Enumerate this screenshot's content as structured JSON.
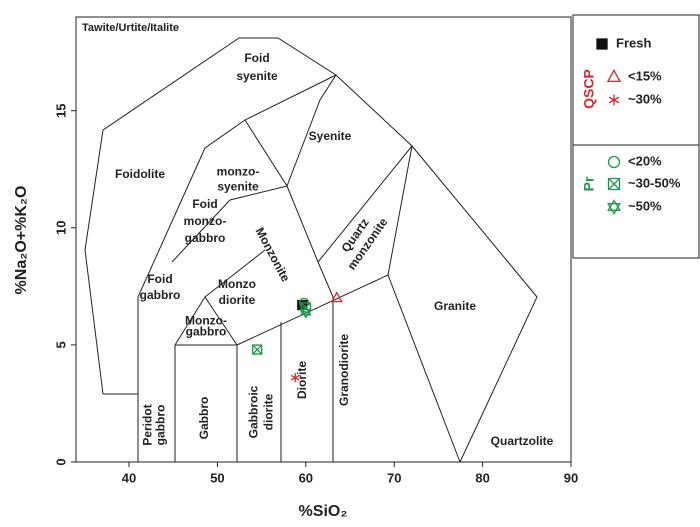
{
  "chart_data": {
    "type": "scatter",
    "x_label": "%SiO₂",
    "y_label": "%Na₂O+%K₂O",
    "xlim": [
      34,
      90
    ],
    "ylim": [
      0,
      19
    ],
    "xticks": [
      40,
      50,
      60,
      70,
      80,
      90
    ],
    "yticks": [
      0,
      5,
      10,
      15
    ],
    "annotation": "Tawite/Urtite/Italite",
    "fields": [
      [
        "Foidolite"
      ],
      [
        "Foid",
        "syenite"
      ],
      [
        "Syenite"
      ],
      [
        "monzo-",
        "syenite"
      ],
      [
        "Foid",
        "monzo-",
        "gabbro"
      ],
      [
        "Foid",
        "gabbro"
      ],
      [
        "Monzo",
        "diorite"
      ],
      [
        "Monzo-",
        "gabbro"
      ],
      [
        "Monzonite"
      ],
      [
        "Quartz",
        "monzonite"
      ],
      [
        "Granite"
      ],
      [
        "Peridot",
        "gabbro"
      ],
      [
        "Gabbro"
      ],
      [
        "Gabbroic",
        "diorite"
      ],
      [
        "Diorite"
      ],
      [
        "Granodiorite"
      ],
      [
        "Quartzolite"
      ]
    ],
    "legend_groups": [
      {
        "name": "QSCP",
        "color": "#d9262b"
      },
      {
        "name": "Pr",
        "color": "#1a9a4a"
      }
    ],
    "series": [
      {
        "name": "Fresh",
        "color": "#111111",
        "marker": "square",
        "x": [
          59.6
        ],
        "y": [
          6.7
        ]
      },
      {
        "name": "<15%",
        "color": "#d9262b",
        "marker": "triangle",
        "group": 0,
        "x": [
          63.5
        ],
        "y": [
          7.0
        ]
      },
      {
        "name": "~30%",
        "color": "#d9262b",
        "marker": "asterisk",
        "group": 0,
        "x": [
          58.8
        ],
        "y": [
          3.6
        ]
      },
      {
        "name": "<20%",
        "color": "#1a9a4a",
        "marker": "circle",
        "group": 1,
        "x": [
          59.8
        ],
        "y": [
          6.8
        ]
      },
      {
        "name": "~30-50%",
        "color": "#1a9a4a",
        "marker": "square-x",
        "group": 1,
        "x": [
          54.5,
          60.0
        ],
        "y": [
          4.8,
          6.6
        ]
      },
      {
        "name": "~50%",
        "color": "#1a9a4a",
        "marker": "hexagram",
        "group": 1,
        "x": [
          60.0
        ],
        "y": [
          6.4
        ]
      }
    ]
  }
}
